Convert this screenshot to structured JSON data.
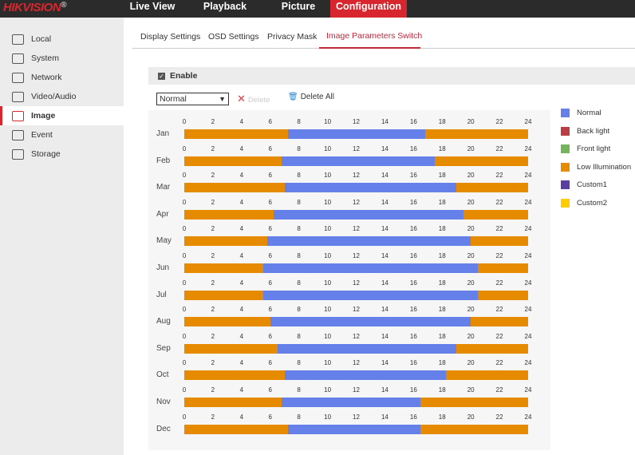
{
  "brand": "HIKVISION",
  "nav": [
    {
      "label": "Live View"
    },
    {
      "label": "Playback"
    },
    {
      "label": "Picture"
    },
    {
      "label": "Configuration",
      "active": true
    }
  ],
  "sidebar": {
    "items": [
      {
        "label": "Local",
        "icon": "monitor-icon"
      },
      {
        "label": "System",
        "icon": "window-icon"
      },
      {
        "label": "Network",
        "icon": "globe-icon"
      },
      {
        "label": "Video/Audio",
        "icon": "mic-camera-icon"
      },
      {
        "label": "Image",
        "icon": "image-icon",
        "active": true
      },
      {
        "label": "Event",
        "icon": "calendar-icon"
      },
      {
        "label": "Storage",
        "icon": "disk-icon"
      }
    ]
  },
  "tabs": [
    {
      "label": "Display Settings"
    },
    {
      "label": "OSD Settings"
    },
    {
      "label": "Privacy Mask"
    },
    {
      "label": "Image Parameters Switch",
      "active": true
    }
  ],
  "enable": {
    "label": "Enable",
    "checked": true
  },
  "mode_select": {
    "value": "Normal"
  },
  "toolbar": {
    "delete_label": "Delete",
    "delete_all_label": "Delete All"
  },
  "axis_ticks": [
    "0",
    "2",
    "4",
    "6",
    "8",
    "10",
    "12",
    "14",
    "16",
    "18",
    "20",
    "22",
    "24"
  ],
  "colors": {
    "Normal": "#6680ea",
    "Back light": "#bd3d44",
    "Front light": "#74b45a",
    "Low Illumination": "#e68a00",
    "Custom1": "#5a3fa0",
    "Custom2": "#ffcc00",
    "accent": "#d8262e"
  },
  "legend": [
    "Normal",
    "Back light",
    "Front light",
    "Low Illumination",
    "Custom1",
    "Custom2"
  ],
  "schedule": [
    {
      "month": "Jan",
      "normal_start": 7.25,
      "normal_end": 16.8
    },
    {
      "month": "Feb",
      "normal_start": 6.8,
      "normal_end": 17.5
    },
    {
      "month": "Mar",
      "normal_start": 7.0,
      "normal_end": 19.0
    },
    {
      "month": "Apr",
      "normal_start": 6.25,
      "normal_end": 19.5
    },
    {
      "month": "May",
      "normal_start": 5.8,
      "normal_end": 20.0
    },
    {
      "month": "Jun",
      "normal_start": 5.5,
      "normal_end": 20.5
    },
    {
      "month": "Jul",
      "normal_start": 5.5,
      "normal_end": 20.5
    },
    {
      "month": "Aug",
      "normal_start": 6.0,
      "normal_end": 20.0
    },
    {
      "month": "Sep",
      "normal_start": 6.5,
      "normal_end": 19.0
    },
    {
      "month": "Oct",
      "normal_start": 7.0,
      "normal_end": 18.25
    },
    {
      "month": "Nov",
      "normal_start": 6.8,
      "normal_end": 16.5
    },
    {
      "month": "Dec",
      "normal_start": 7.25,
      "normal_end": 16.5
    }
  ]
}
